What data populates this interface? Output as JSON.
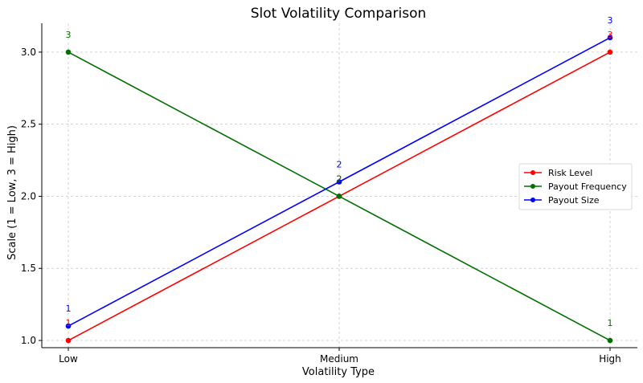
{
  "chart_data": {
    "type": "line",
    "title": "Slot Volatility Comparison",
    "xlabel": "Volatility Type",
    "ylabel": "Scale (1 = Low, 3 = High)",
    "categories": [
      "Low",
      "Medium",
      "High"
    ],
    "ylim": [
      0.95,
      3.2
    ],
    "yticks": [
      "1.0",
      "1.5",
      "2.0",
      "2.5",
      "3.0"
    ],
    "grid": true,
    "legend_position": "center-right",
    "series": [
      {
        "name": "Risk Level",
        "color": "#ff0000",
        "values": [
          1.0,
          2.0,
          3.0
        ],
        "labels": [
          "1",
          "2",
          "3"
        ]
      },
      {
        "name": "Payout Frequency",
        "color": "#007000",
        "values": [
          3.0,
          2.0,
          1.0
        ],
        "labels": [
          "3",
          "2",
          "1"
        ]
      },
      {
        "name": "Payout Size",
        "color": "#0000ff",
        "values": [
          1.1,
          2.1,
          3.1
        ],
        "labels": [
          "1",
          "2",
          "3"
        ]
      }
    ]
  }
}
